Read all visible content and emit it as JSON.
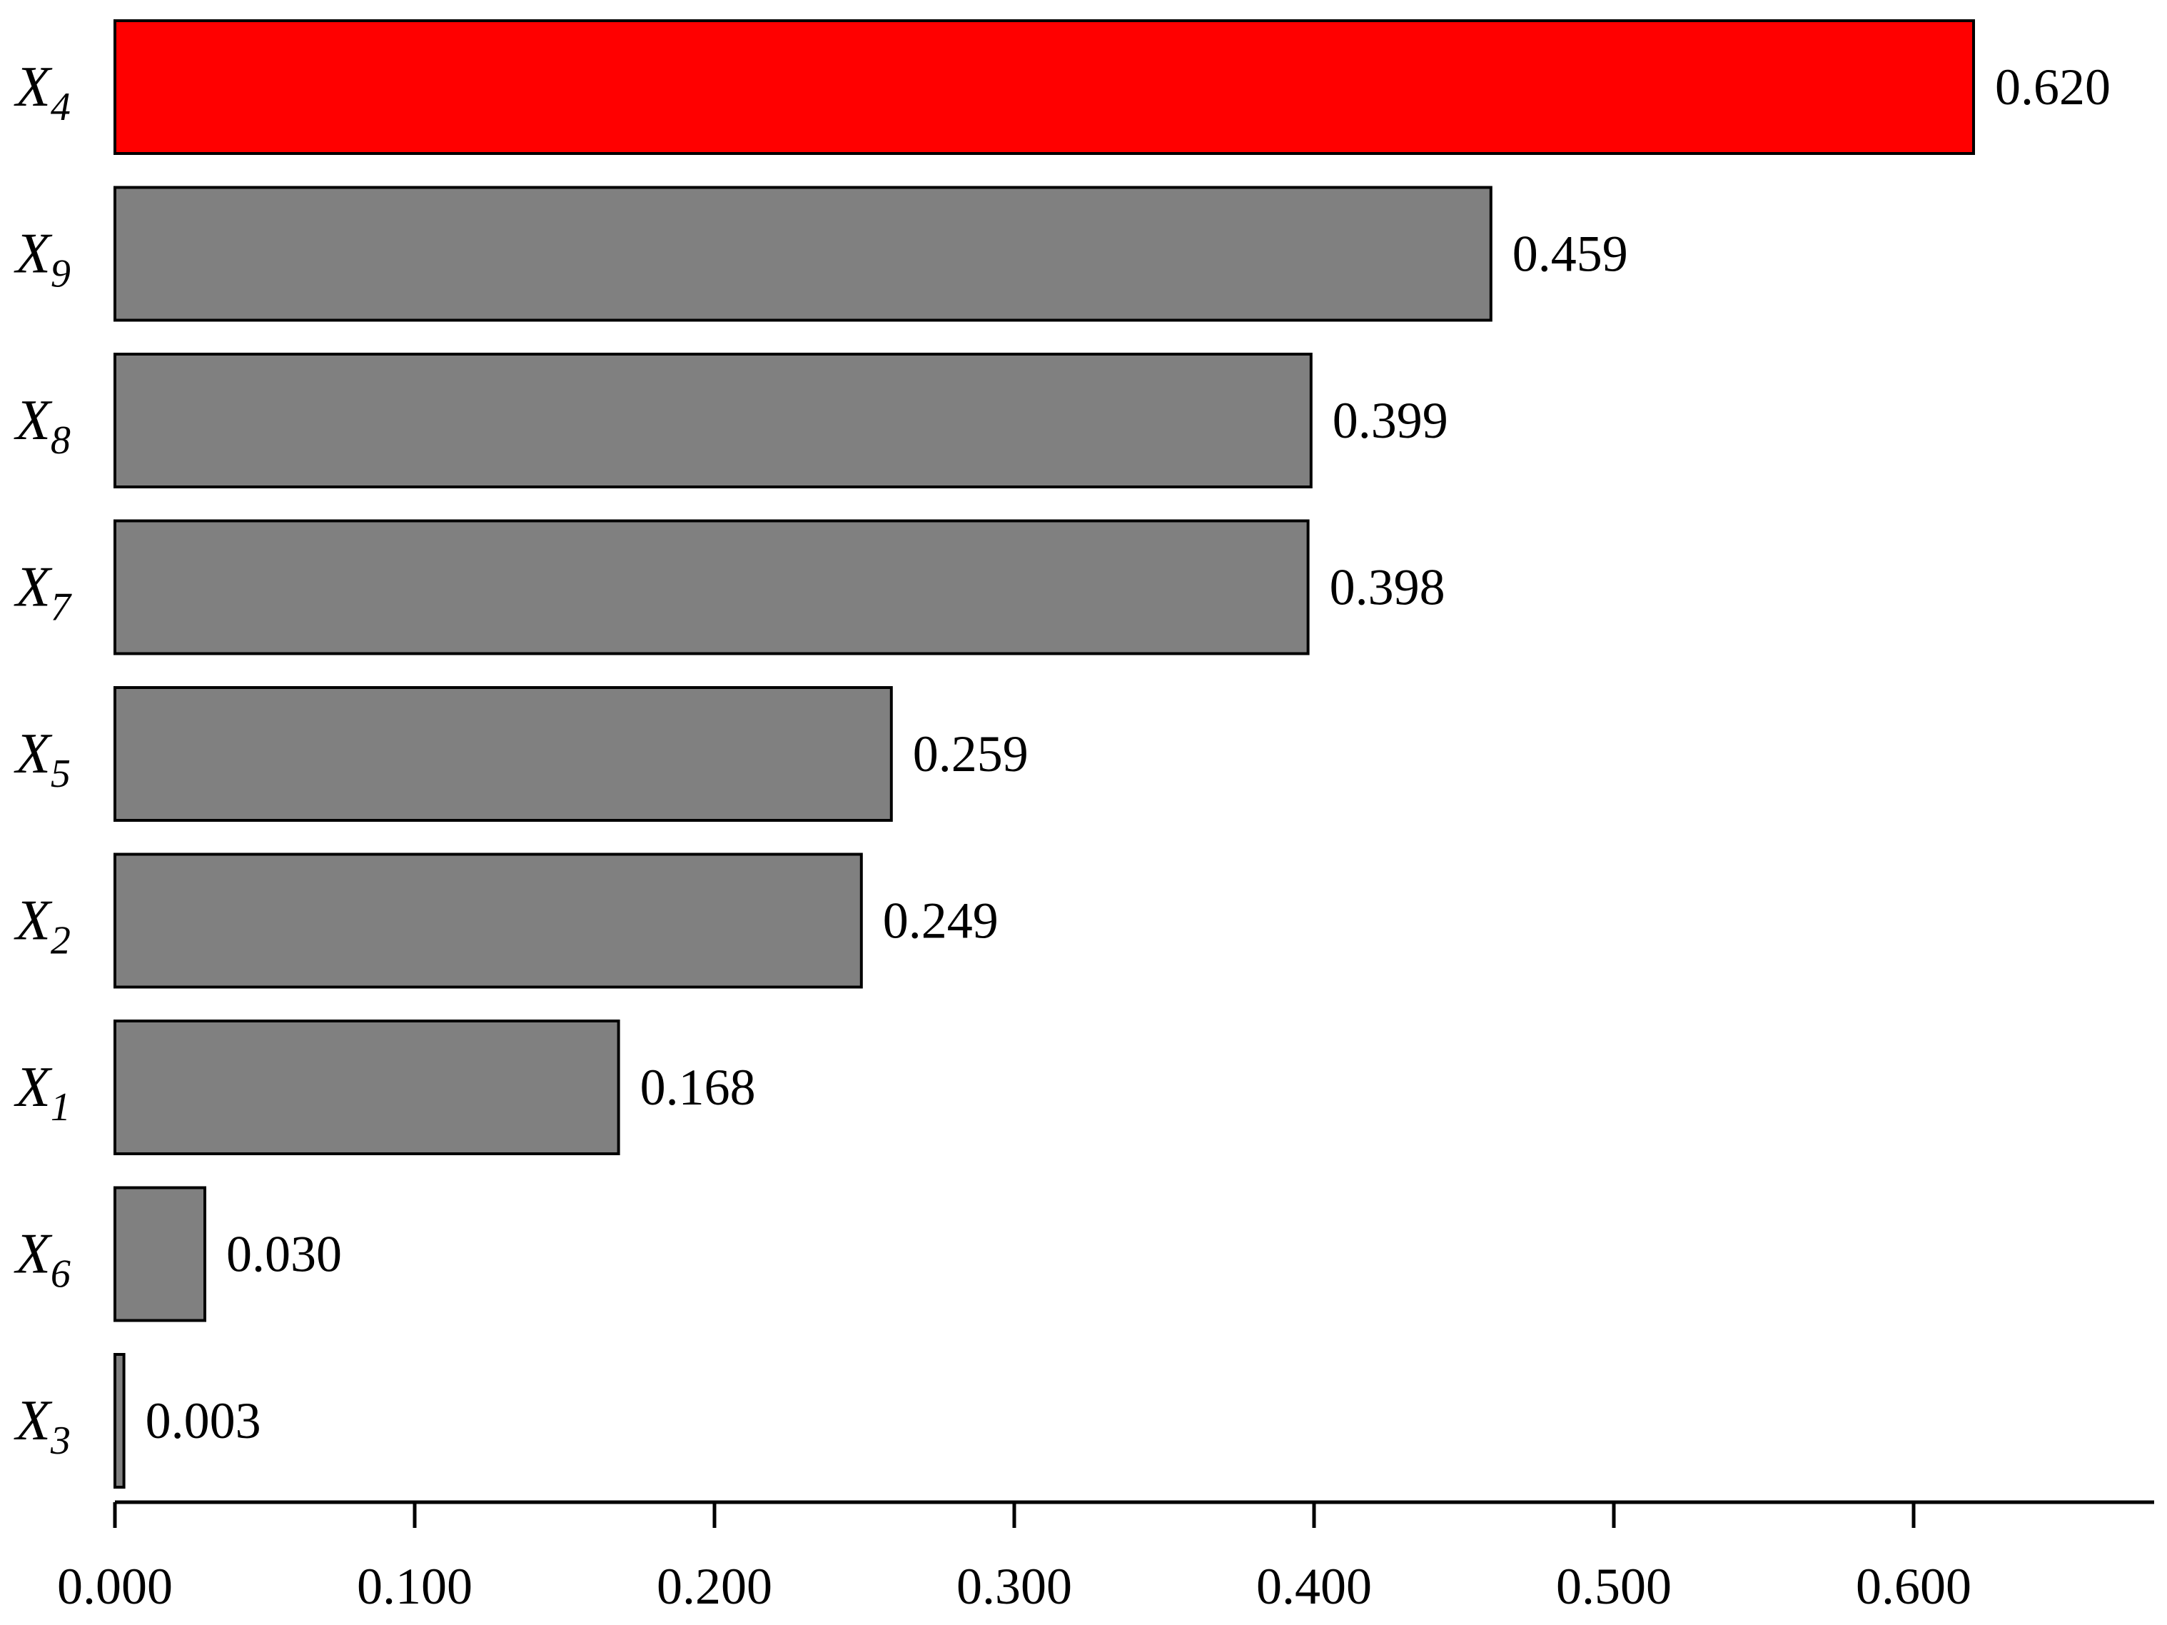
{
  "chart_data": {
    "type": "bar",
    "orientation": "horizontal",
    "title": "",
    "xlabel": "",
    "ylabel": "",
    "xlim": [
      0,
      0.68
    ],
    "grid": false,
    "legend": false,
    "categories": [
      {
        "base": "X",
        "sub": "4"
      },
      {
        "base": "X",
        "sub": "9"
      },
      {
        "base": "X",
        "sub": "8"
      },
      {
        "base": "X",
        "sub": "7"
      },
      {
        "base": "X",
        "sub": "5"
      },
      {
        "base": "X",
        "sub": "2"
      },
      {
        "base": "X",
        "sub": "1"
      },
      {
        "base": "X",
        "sub": "6"
      },
      {
        "base": "X",
        "sub": "3"
      }
    ],
    "values": [
      0.62,
      0.459,
      0.399,
      0.398,
      0.259,
      0.249,
      0.168,
      0.03,
      0.003
    ],
    "value_labels": [
      "0.620",
      "0.459",
      "0.399",
      "0.398",
      "0.259",
      "0.249",
      "0.168",
      "0.030",
      "0.003"
    ],
    "bar_colors": [
      "#ff0000",
      "#808080",
      "#808080",
      "#808080",
      "#808080",
      "#808080",
      "#808080",
      "#808080",
      "#808080"
    ],
    "x_ticks": [
      0,
      0.1,
      0.2,
      0.3,
      0.4,
      0.5,
      0.6
    ],
    "x_tick_labels": [
      "0.000",
      "0.100",
      "0.200",
      "0.300",
      "0.400",
      "0.500",
      "0.600"
    ]
  }
}
